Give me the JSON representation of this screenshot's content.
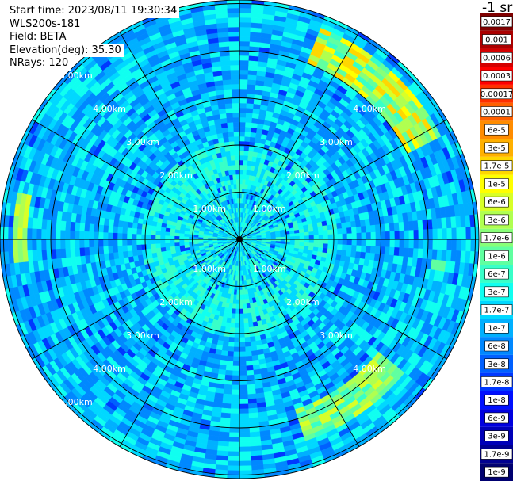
{
  "info": {
    "start_time": "Start time: 2023/08/11 19:30:34",
    "instrument": "WLS200s-181",
    "field": "Field: BETA",
    "elevation": "Elevation(deg): 35.30",
    "nrays": "NRays: 120"
  },
  "ppi": {
    "range_rings_km": [
      1,
      2,
      3,
      4,
      5
    ],
    "ring_label_suffix": "km",
    "ring_labels": [
      "1.00km",
      "2.00km",
      "3.00km",
      "4.00km",
      "5.00km"
    ],
    "spokes_deg": [
      0,
      30,
      60,
      90,
      120,
      150,
      180,
      210,
      240,
      270,
      300,
      330
    ],
    "max_range_km": 5.0
  },
  "colorbar": {
    "unit_label": "-1 sr",
    "labels": [
      "0.0017",
      "0.001",
      "0.0006",
      "0.0003",
      "0.00017",
      "0.0001",
      "6e-5",
      "3e-5",
      "1.7e-5",
      "1e-5",
      "6e-6",
      "3e-6",
      "1.7e-6",
      "1e-6",
      "6e-7",
      "3e-7",
      "1.7e-7",
      "1e-7",
      "6e-8",
      "3e-8",
      "1.7e-8",
      "1e-8",
      "6e-9",
      "3e-9",
      "1.7e-9",
      "1e-9"
    ],
    "colors": [
      "#800000",
      "#aa0000",
      "#d40000",
      "#ff0000",
      "#ff3000",
      "#ff6000",
      "#ff8c00",
      "#ffb000",
      "#ffd700",
      "#ffff00",
      "#d8ff28",
      "#b0ff50",
      "#88ff78",
      "#60ffa0",
      "#38ffc8",
      "#10fff0",
      "#00d8ff",
      "#00b0ff",
      "#0088ff",
      "#0060ff",
      "#0038ff",
      "#0010ff",
      "#0000e0",
      "#0000b8",
      "#000090",
      "#000070"
    ]
  }
}
